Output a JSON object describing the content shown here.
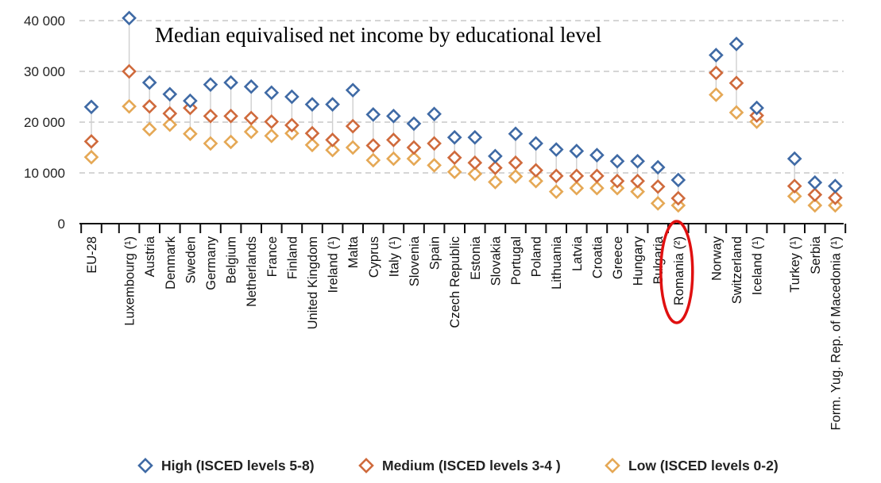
{
  "chart_data": {
    "type": "scatter",
    "title": "Median equivalised net income by educational level",
    "xlabel": "",
    "ylabel": "",
    "ylim": [
      0,
      42000
    ],
    "yticks": [
      0,
      10000,
      20000,
      30000,
      40000
    ],
    "ytick_labels": [
      "0",
      "10 000",
      "20 000",
      "30 000",
      "40 000"
    ],
    "grid": true,
    "legend_position": "bottom",
    "categories": [
      "EU-28",
      "Luxembourg (¹)",
      "Austria",
      "Denmark",
      "Sweden",
      "Germany",
      "Belgium",
      "Netherlands",
      "France",
      "Finland",
      "United Kingdom",
      "Ireland (¹)",
      "Malta",
      "Cyprus",
      "Italy (¹)",
      "Slovenia",
      "Spain",
      "Czech Republic",
      "Estonia",
      "Slovakia",
      "Portugal",
      "Poland",
      "Lithuania",
      "Latvia",
      "Croatia",
      "Greece",
      "Hungary",
      "Bulgaria",
      "Romania (²)",
      "Norway",
      "Switzerland",
      "Iceland (¹)",
      "Turkey (¹)",
      "Serbia",
      "Form. Yug. Rep. of Macedonia (¹)"
    ],
    "groups": [
      [
        0
      ],
      [
        1,
        28
      ],
      [
        29,
        31
      ],
      [
        32,
        34
      ]
    ],
    "highlighted_category": "Romania (²)",
    "series": [
      {
        "name": "High (ISCED levels 5-8)",
        "color": "#3f6aa5",
        "values": [
          23000,
          40500,
          27800,
          25500,
          24200,
          27400,
          27800,
          27000,
          25800,
          25000,
          23500,
          23500,
          26300,
          21500,
          21200,
          19700,
          21600,
          17000,
          17000,
          13300,
          17700,
          15800,
          14600,
          14300,
          13500,
          12300,
          12300,
          11100,
          8600,
          33200,
          35400,
          22800,
          12800,
          8100,
          7400
        ]
      },
      {
        "name": "Medium (ISCED levels 3-4 )",
        "color": "#cf6a3c",
        "values": [
          16200,
          30000,
          23100,
          21700,
          22800,
          21200,
          21200,
          20800,
          20100,
          19400,
          17800,
          16500,
          19200,
          15400,
          16500,
          15000,
          15800,
          13000,
          12000,
          11000,
          12000,
          10500,
          9400,
          9400,
          9400,
          8400,
          8400,
          7300,
          5000,
          29700,
          27700,
          21300,
          7400,
          5700,
          5100
        ]
      },
      {
        "name": "Low (ISCED levels 0-2)",
        "color": "#e5a855",
        "values": [
          13100,
          23100,
          18600,
          19500,
          17700,
          15800,
          16100,
          18100,
          17300,
          17800,
          15500,
          14500,
          15000,
          12500,
          12800,
          12800,
          11500,
          10200,
          9800,
          8200,
          9300,
          8400,
          6300,
          7000,
          7000,
          7000,
          6300,
          4000,
          3600,
          25400,
          21900,
          20100,
          5400,
          3600,
          3600
        ]
      }
    ]
  }
}
